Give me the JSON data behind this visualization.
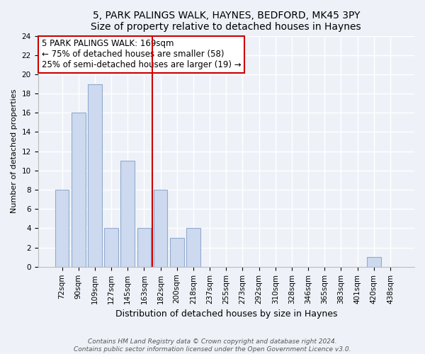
{
  "title1": "5, PARK PALINGS WALK, HAYNES, BEDFORD, MK45 3PY",
  "title2": "Size of property relative to detached houses in Haynes",
  "xlabel": "Distribution of detached houses by size in Haynes",
  "ylabel": "Number of detached properties",
  "bar_labels": [
    "72sqm",
    "90sqm",
    "109sqm",
    "127sqm",
    "145sqm",
    "163sqm",
    "182sqm",
    "200sqm",
    "218sqm",
    "237sqm",
    "255sqm",
    "273sqm",
    "292sqm",
    "310sqm",
    "328sqm",
    "346sqm",
    "365sqm",
    "383sqm",
    "401sqm",
    "420sqm",
    "438sqm"
  ],
  "bar_values": [
    8,
    16,
    19,
    4,
    11,
    4,
    8,
    3,
    4,
    0,
    0,
    0,
    0,
    0,
    0,
    0,
    0,
    0,
    0,
    1,
    0
  ],
  "bar_color": "#cdd9ee",
  "bar_edge_color": "#92aacf",
  "vline_color": "#cc0000",
  "vline_x_idx": 5.5,
  "annotation_title": "5 PARK PALINGS WALK: 169sqm",
  "annotation_line1": "← 75% of detached houses are smaller (58)",
  "annotation_line2": "25% of semi-detached houses are larger (19) →",
  "box_facecolor": "#ffffff",
  "box_edgecolor": "#cc0000",
  "ylim": [
    0,
    24
  ],
  "yticks": [
    0,
    2,
    4,
    6,
    8,
    10,
    12,
    14,
    16,
    18,
    20,
    22,
    24
  ],
  "footer1": "Contains HM Land Registry data © Crown copyright and database right 2024.",
  "footer2": "Contains public sector information licensed under the Open Government Licence v3.0.",
  "bg_color": "#eef2f8",
  "grid_color": "#ffffff",
  "title_fontsize": 10,
  "subtitle_fontsize": 9,
  "ylabel_fontsize": 8,
  "xlabel_fontsize": 9,
  "tick_fontsize": 7.5,
  "annotation_fontsize": 8.5,
  "footer_fontsize": 6.5
}
